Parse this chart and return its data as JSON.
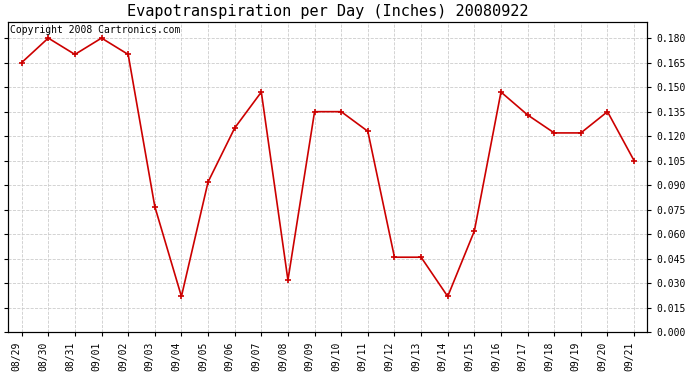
{
  "title": "Evapotranspiration per Day (Inches) 20080922",
  "copyright": "Copyright 2008 Cartronics.com",
  "x_labels": [
    "08/29",
    "08/30",
    "08/31",
    "09/01",
    "09/02",
    "09/03",
    "09/04",
    "09/05",
    "09/06",
    "09/07",
    "09/08",
    "09/09",
    "09/10",
    "09/11",
    "09/12",
    "09/13",
    "09/14",
    "09/15",
    "09/16",
    "09/17",
    "09/18",
    "09/19",
    "09/20",
    "09/21"
  ],
  "y_values": [
    0.165,
    0.18,
    0.17,
    0.18,
    0.17,
    0.077,
    0.022,
    0.092,
    0.125,
    0.147,
    0.032,
    0.135,
    0.135,
    0.123,
    0.046,
    0.046,
    0.022,
    0.062,
    0.147,
    0.133,
    0.122,
    0.122,
    0.135,
    0.105
  ],
  "line_color": "#cc0000",
  "marker": "+",
  "marker_size": 5,
  "marker_linewidth": 1.2,
  "line_width": 1.2,
  "ylim": [
    0.0,
    0.19
  ],
  "ytick_step": 0.015,
  "ytick_values": [
    0.0,
    0.015,
    0.03,
    0.045,
    0.06,
    0.075,
    0.09,
    0.105,
    0.12,
    0.135,
    0.15,
    0.165,
    0.18
  ],
  "grid_color": "#cccccc",
  "background_color": "#ffffff",
  "title_fontsize": 11,
  "copyright_fontsize": 7,
  "tick_fontsize": 7,
  "figure_width": 6.9,
  "figure_height": 3.75,
  "dpi": 100
}
